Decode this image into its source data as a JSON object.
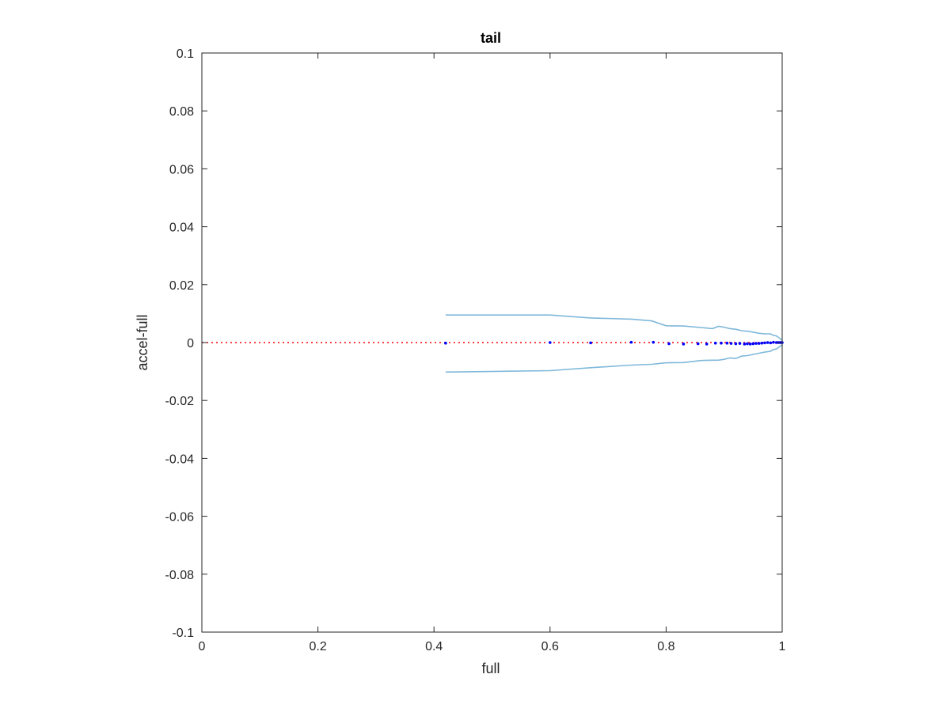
{
  "chart_data": {
    "type": "scatter",
    "title": "tail",
    "xlabel": "full",
    "ylabel": "accel-full",
    "xlim": [
      0,
      1
    ],
    "ylim": [
      -0.1,
      0.1
    ],
    "xticks": [
      0,
      0.2,
      0.4,
      0.6,
      0.8,
      1
    ],
    "xtick_labels": [
      "0",
      "0.2",
      "0.4",
      "0.6",
      "0.8",
      "1"
    ],
    "yticks": [
      -0.1,
      -0.08,
      -0.06,
      -0.04,
      -0.02,
      0,
      0.02,
      0.04,
      0.06,
      0.08,
      0.1
    ],
    "ytick_labels": [
      "-0.1",
      "-0.08",
      "-0.06",
      "-0.04",
      "-0.02",
      "0",
      "0.02",
      "0.04",
      "0.06",
      "0.08",
      "0.1"
    ],
    "grid": false,
    "reference_line": {
      "y": 0,
      "style": "dotted",
      "color": "#ff0000"
    },
    "upper_band": {
      "color": "#7fb8da",
      "x": [
        0.42,
        0.6,
        0.67,
        0.74,
        0.775,
        0.8,
        0.83,
        0.86,
        0.88,
        0.89,
        0.9,
        0.91,
        0.92,
        0.93,
        0.94,
        0.95,
        0.96,
        0.97,
        0.98,
        0.985,
        0.99,
        0.995,
        1.0
      ],
      "y": [
        0.0095,
        0.0095,
        0.0085,
        0.0081,
        0.0075,
        0.0058,
        0.0057,
        0.0052,
        0.0048,
        0.0056,
        0.0053,
        0.0048,
        0.0046,
        0.0041,
        0.0039,
        0.0036,
        0.0032,
        0.003,
        0.003,
        0.0025,
        0.0023,
        0.0016,
        0.0008
      ]
    },
    "lower_band": {
      "color": "#7fb8da",
      "x": [
        0.42,
        0.6,
        0.67,
        0.74,
        0.775,
        0.8,
        0.83,
        0.86,
        0.88,
        0.89,
        0.9,
        0.91,
        0.92,
        0.93,
        0.94,
        0.95,
        0.96,
        0.97,
        0.98,
        0.985,
        0.99,
        0.995,
        1.0
      ],
      "y": [
        -0.0102,
        -0.0097,
        -0.0087,
        -0.0078,
        -0.0075,
        -0.007,
        -0.0069,
        -0.0062,
        -0.0061,
        -0.0061,
        -0.0058,
        -0.0053,
        -0.0055,
        -0.0047,
        -0.0045,
        -0.0041,
        -0.0037,
        -0.0033,
        -0.003,
        -0.0024,
        -0.0022,
        -0.0015,
        -0.0008
      ]
    },
    "points": {
      "color": "#0000ff",
      "x": [
        0.42,
        0.6,
        0.67,
        0.74,
        0.778,
        0.805,
        0.83,
        0.855,
        0.87,
        0.885,
        0.895,
        0.905,
        0.912,
        0.92,
        0.927,
        0.935,
        0.94,
        0.945,
        0.95,
        0.955,
        0.96,
        0.965,
        0.97,
        0.975,
        0.98,
        0.985,
        0.99,
        0.993,
        0.996,
        0.998,
        1.0
      ],
      "y": [
        -0.0002,
        0.0,
        -0.0001,
        0.0001,
        0.0001,
        -0.0004,
        -0.0005,
        -0.0004,
        -0.0005,
        -0.0002,
        -0.0002,
        -0.0002,
        -0.0003,
        -0.0004,
        -0.0003,
        -0.0005,
        -0.0004,
        -0.0005,
        -0.0004,
        -0.0003,
        -0.0003,
        -0.0002,
        -0.0001,
        0.0,
        -0.0001,
        0.0001,
        0.0,
        0.0,
        0.0,
        0.0,
        0.0
      ]
    }
  }
}
